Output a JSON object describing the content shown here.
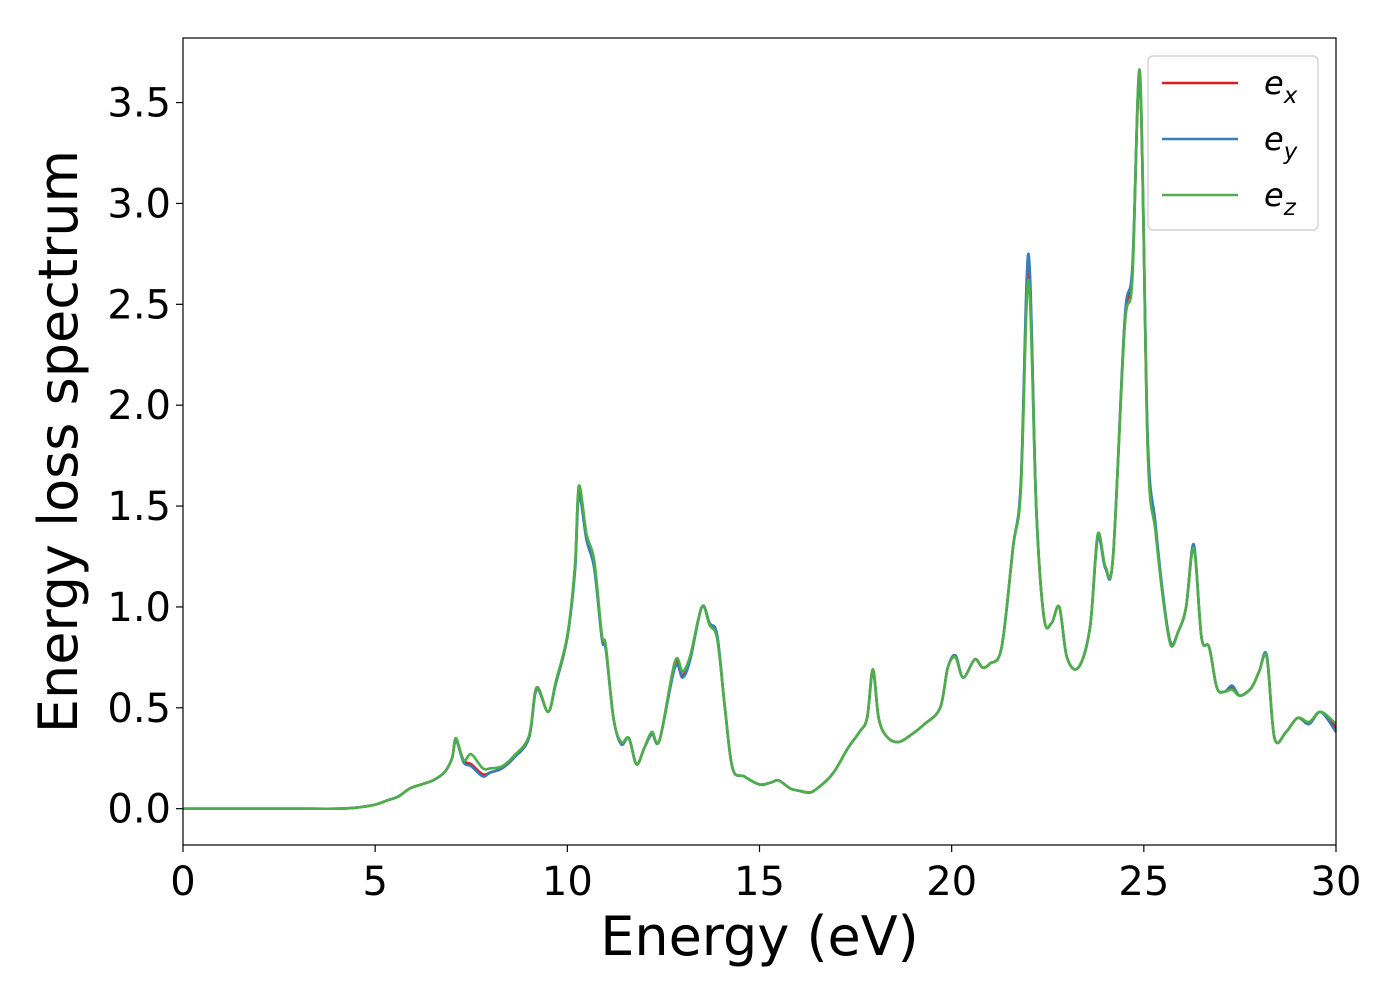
{
  "chart_data": {
    "type": "line",
    "title": "",
    "xlabel": "Energy (eV)",
    "ylabel": "Energy loss spectrum",
    "xlim": [
      0,
      30
    ],
    "ylim": [
      -0.18,
      3.82
    ],
    "xticks": [
      0,
      5,
      10,
      15,
      20,
      25,
      30
    ],
    "xtick_labels": [
      "0",
      "5",
      "10",
      "15",
      "20",
      "25",
      "30"
    ],
    "yticks": [
      0.0,
      0.5,
      1.0,
      1.5,
      2.0,
      2.5,
      3.0,
      3.5
    ],
    "ytick_labels": [
      "0.0",
      "0.5",
      "1.0",
      "1.5",
      "2.0",
      "2.5",
      "3.0",
      "3.5"
    ],
    "grid": false,
    "legend_position": "top-right",
    "series": [
      {
        "name": "e_x",
        "legend_base": "e",
        "legend_sub": "x",
        "color": "#e41a1c",
        "x": [
          0,
          1,
          2,
          3,
          4,
          4.5,
          5.0,
          5.3,
          5.6,
          5.9,
          6.2,
          6.5,
          6.8,
          7.0,
          7.1,
          7.3,
          7.5,
          7.8,
          8.0,
          8.3,
          8.6,
          9.0,
          9.2,
          9.5,
          9.7,
          10.0,
          10.2,
          10.3,
          10.5,
          10.7,
          10.9,
          11.0,
          11.2,
          11.4,
          11.6,
          11.8,
          12.0,
          12.2,
          12.4,
          12.8,
          13.0,
          13.2,
          13.5,
          13.7,
          13.9,
          14.1,
          14.3,
          14.6,
          15.0,
          15.3,
          15.5,
          15.8,
          16.0,
          16.3,
          16.5,
          16.8,
          17.0,
          17.3,
          17.6,
          17.8,
          17.95,
          18.1,
          18.3,
          18.6,
          18.9,
          19.3,
          19.7,
          19.9,
          20.1,
          20.3,
          20.6,
          20.8,
          21.0,
          21.3,
          21.6,
          21.8,
          22.0,
          22.2,
          22.4,
          22.6,
          22.8,
          23.0,
          23.3,
          23.6,
          23.8,
          24.0,
          24.2,
          24.5,
          24.7,
          24.9,
          25.1,
          25.3,
          25.5,
          25.7,
          25.9,
          26.1,
          26.3,
          26.5,
          26.7,
          26.9,
          27.1,
          27.3,
          27.5,
          27.8,
          28.0,
          28.2,
          28.4,
          28.7,
          29.0,
          29.3,
          29.6,
          30.0
        ],
        "values": [
          0,
          0,
          0,
          0,
          0,
          0.005,
          0.02,
          0.04,
          0.06,
          0.1,
          0.12,
          0.14,
          0.18,
          0.25,
          0.34,
          0.24,
          0.22,
          0.17,
          0.18,
          0.2,
          0.25,
          0.35,
          0.6,
          0.48,
          0.62,
          0.85,
          1.2,
          1.58,
          1.35,
          1.2,
          0.85,
          0.8,
          0.45,
          0.32,
          0.35,
          0.22,
          0.3,
          0.37,
          0.34,
          0.72,
          0.66,
          0.75,
          1.0,
          0.92,
          0.85,
          0.5,
          0.2,
          0.16,
          0.12,
          0.13,
          0.14,
          0.1,
          0.09,
          0.08,
          0.1,
          0.15,
          0.2,
          0.3,
          0.38,
          0.45,
          0.69,
          0.45,
          0.36,
          0.33,
          0.36,
          0.42,
          0.5,
          0.7,
          0.75,
          0.65,
          0.74,
          0.7,
          0.72,
          0.8,
          1.3,
          1.6,
          2.7,
          1.5,
          0.95,
          0.92,
          1.0,
          0.75,
          0.7,
          0.9,
          1.35,
          1.2,
          1.25,
          2.4,
          2.65,
          3.6,
          1.8,
          1.4,
          1.05,
          0.82,
          0.88,
          1.0,
          1.3,
          0.85,
          0.8,
          0.6,
          0.58,
          0.6,
          0.56,
          0.6,
          0.68,
          0.75,
          0.35,
          0.38,
          0.45,
          0.42,
          0.48,
          0.4
        ]
      },
      {
        "name": "e_y",
        "legend_base": "e",
        "legend_sub": "y",
        "color": "#377eb8",
        "x": [
          0,
          1,
          2,
          3,
          4,
          4.5,
          5.0,
          5.3,
          5.6,
          5.9,
          6.2,
          6.5,
          6.8,
          7.0,
          7.1,
          7.3,
          7.5,
          7.8,
          8.0,
          8.3,
          8.6,
          9.0,
          9.2,
          9.5,
          9.7,
          10.0,
          10.2,
          10.3,
          10.5,
          10.7,
          10.9,
          11.0,
          11.2,
          11.4,
          11.6,
          11.8,
          12.0,
          12.2,
          12.4,
          12.8,
          13.0,
          13.2,
          13.5,
          13.7,
          13.9,
          14.1,
          14.3,
          14.6,
          15.0,
          15.3,
          15.5,
          15.8,
          16.0,
          16.3,
          16.5,
          16.8,
          17.0,
          17.3,
          17.6,
          17.8,
          17.95,
          18.1,
          18.3,
          18.6,
          18.9,
          19.3,
          19.7,
          19.9,
          20.1,
          20.3,
          20.6,
          20.8,
          21.0,
          21.3,
          21.6,
          21.8,
          22.0,
          22.2,
          22.4,
          22.6,
          22.8,
          23.0,
          23.3,
          23.6,
          23.8,
          24.0,
          24.2,
          24.5,
          24.7,
          24.9,
          25.1,
          25.3,
          25.5,
          25.7,
          25.9,
          26.1,
          26.3,
          26.5,
          26.7,
          26.9,
          27.1,
          27.3,
          27.5,
          27.8,
          28.0,
          28.2,
          28.4,
          28.7,
          29.0,
          29.3,
          29.6,
          30.0
        ],
        "values": [
          0,
          0,
          0,
          0,
          0,
          0.005,
          0.02,
          0.04,
          0.06,
          0.1,
          0.12,
          0.14,
          0.18,
          0.25,
          0.34,
          0.23,
          0.21,
          0.16,
          0.18,
          0.2,
          0.25,
          0.35,
          0.59,
          0.48,
          0.62,
          0.85,
          1.18,
          1.55,
          1.33,
          1.19,
          0.84,
          0.79,
          0.45,
          0.32,
          0.35,
          0.22,
          0.3,
          0.37,
          0.34,
          0.7,
          0.65,
          0.74,
          1.0,
          0.92,
          0.86,
          0.5,
          0.2,
          0.16,
          0.12,
          0.13,
          0.14,
          0.1,
          0.09,
          0.08,
          0.1,
          0.15,
          0.2,
          0.3,
          0.38,
          0.45,
          0.68,
          0.45,
          0.36,
          0.33,
          0.36,
          0.42,
          0.5,
          0.7,
          0.76,
          0.65,
          0.74,
          0.7,
          0.72,
          0.8,
          1.3,
          1.62,
          2.75,
          1.5,
          0.95,
          0.92,
          1.0,
          0.75,
          0.7,
          0.9,
          1.34,
          1.19,
          1.25,
          2.42,
          2.68,
          3.62,
          1.85,
          1.42,
          1.06,
          0.82,
          0.88,
          1.0,
          1.31,
          0.85,
          0.8,
          0.6,
          0.58,
          0.61,
          0.56,
          0.6,
          0.68,
          0.76,
          0.35,
          0.38,
          0.45,
          0.42,
          0.48,
          0.38
        ]
      },
      {
        "name": "e_z",
        "legend_base": "e",
        "legend_sub": "z",
        "color": "#4daf4a",
        "x": [
          0,
          1,
          2,
          3,
          4,
          4.5,
          5.0,
          5.3,
          5.6,
          5.9,
          6.2,
          6.5,
          6.8,
          7.0,
          7.1,
          7.3,
          7.5,
          7.8,
          8.0,
          8.3,
          8.6,
          9.0,
          9.2,
          9.5,
          9.7,
          10.0,
          10.2,
          10.3,
          10.5,
          10.7,
          10.9,
          11.0,
          11.2,
          11.4,
          11.6,
          11.8,
          12.0,
          12.2,
          12.4,
          12.8,
          13.0,
          13.2,
          13.5,
          13.7,
          13.9,
          14.1,
          14.3,
          14.6,
          15.0,
          15.3,
          15.5,
          15.8,
          16.0,
          16.3,
          16.5,
          16.8,
          17.0,
          17.3,
          17.6,
          17.8,
          17.95,
          18.1,
          18.3,
          18.6,
          18.9,
          19.3,
          19.7,
          19.9,
          20.1,
          20.3,
          20.6,
          20.8,
          21.0,
          21.3,
          21.6,
          21.8,
          22.0,
          22.2,
          22.4,
          22.6,
          22.8,
          23.0,
          23.3,
          23.6,
          23.8,
          24.0,
          24.2,
          24.5,
          24.7,
          24.9,
          25.1,
          25.3,
          25.5,
          25.7,
          25.9,
          26.1,
          26.3,
          26.5,
          26.7,
          26.9,
          27.1,
          27.3,
          27.5,
          27.8,
          28.0,
          28.2,
          28.4,
          28.7,
          29.0,
          29.3,
          29.6,
          30.0
        ],
        "values": [
          0,
          0,
          0,
          0,
          0,
          0.005,
          0.02,
          0.04,
          0.06,
          0.1,
          0.12,
          0.14,
          0.18,
          0.25,
          0.35,
          0.24,
          0.27,
          0.2,
          0.2,
          0.21,
          0.26,
          0.36,
          0.6,
          0.48,
          0.63,
          0.86,
          1.21,
          1.6,
          1.36,
          1.23,
          0.86,
          0.81,
          0.45,
          0.33,
          0.35,
          0.22,
          0.3,
          0.38,
          0.34,
          0.73,
          0.68,
          0.76,
          1.0,
          0.91,
          0.84,
          0.5,
          0.2,
          0.16,
          0.12,
          0.13,
          0.14,
          0.1,
          0.09,
          0.08,
          0.1,
          0.15,
          0.2,
          0.3,
          0.38,
          0.45,
          0.69,
          0.45,
          0.36,
          0.33,
          0.36,
          0.42,
          0.5,
          0.7,
          0.75,
          0.65,
          0.74,
          0.7,
          0.72,
          0.8,
          1.3,
          1.58,
          2.62,
          1.48,
          0.95,
          0.92,
          1.0,
          0.75,
          0.7,
          0.9,
          1.36,
          1.2,
          1.25,
          2.38,
          2.62,
          3.65,
          1.78,
          1.38,
          1.04,
          0.81,
          0.88,
          1.0,
          1.29,
          0.85,
          0.8,
          0.6,
          0.58,
          0.59,
          0.56,
          0.6,
          0.68,
          0.75,
          0.35,
          0.38,
          0.45,
          0.43,
          0.48,
          0.42
        ]
      }
    ]
  }
}
